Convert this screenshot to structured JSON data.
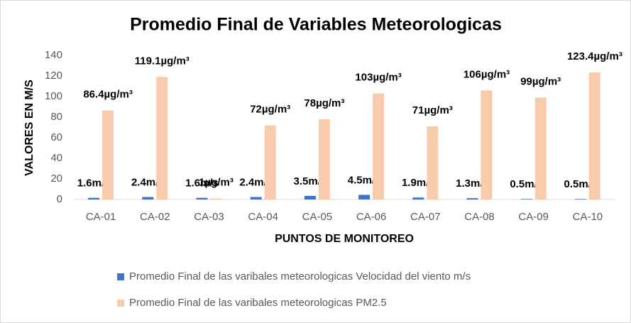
{
  "chart_data": {
    "type": "bar",
    "title": "Promedio Final de Variables Meteorologicas",
    "x_label": "PUNTOS DE MONITOREO",
    "y_label": "VALORES EN M/S",
    "categories": [
      "CA-01",
      "CA-02",
      "CA-03",
      "CA-04",
      "CA-05",
      "CA-06",
      "CA-07",
      "CA-08",
      "CA-09",
      "CA-10"
    ],
    "series": [
      {
        "name": "Promedio Final de las varibales meteorologicas Velocidad del viento m/s",
        "color": "#4472c4",
        "values": [
          1.6,
          2.4,
          1.6,
          2.4,
          3.5,
          4.5,
          1.9,
          1.3,
          0.5,
          0.5
        ],
        "value_labels": [
          "1.6m/s",
          "2.4m/s",
          "1.6m/s",
          "2.4m/s",
          "3.5m/s",
          "4.5m/s",
          "1.9m/s",
          "1.3m/s",
          "0.5m/s",
          "0.5m/s"
        ]
      },
      {
        "name": "Promedio Final de las varibales meteorologicas PM2.5",
        "color": "#f8cbad",
        "values": [
          86.4,
          119.1,
          1,
          72,
          78,
          103,
          71,
          106,
          99,
          123.4
        ],
        "value_labels": [
          "86.4µg/m³",
          "119.1µg/m³",
          "1µg/m³",
          "72µg/m³",
          "78µg/m³",
          "103µg/m³",
          "71µg/m³",
          "106µg/m³",
          "99µg/m³",
          "123.4µg/m³"
        ]
      }
    ],
    "ylim": [
      0,
      140
    ],
    "yticks": [
      0,
      20,
      40,
      60,
      80,
      100,
      120,
      140
    ],
    "grid": false
  }
}
